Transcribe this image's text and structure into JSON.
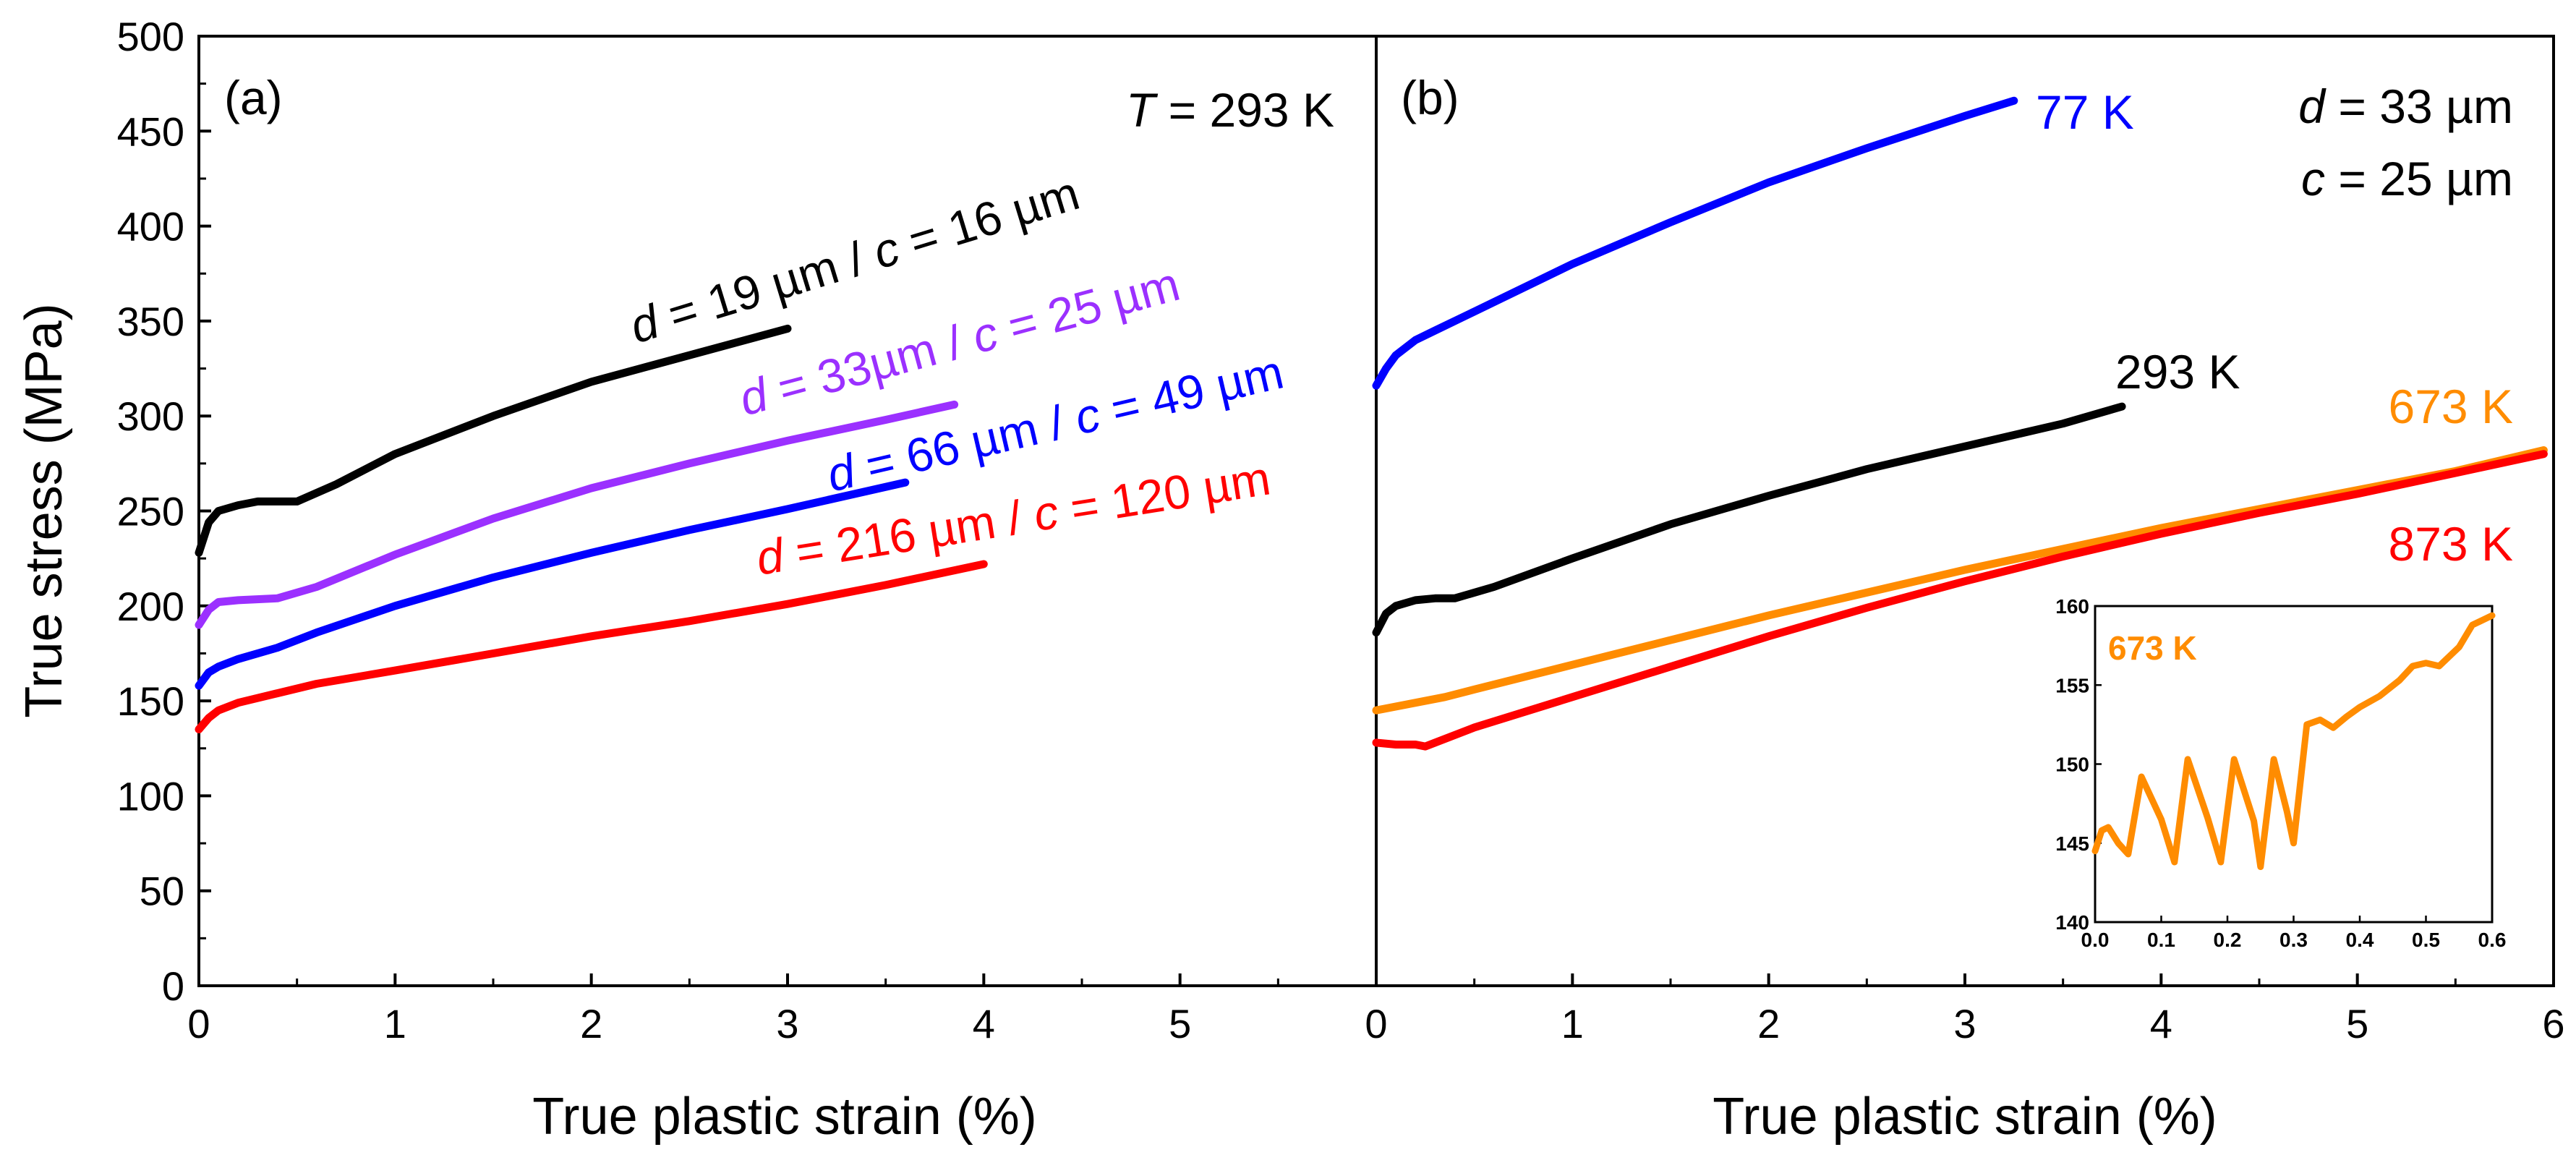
{
  "chart_data": [
    {
      "type": "line",
      "panel": "(a)",
      "condition_label": "T = 293 K",
      "condition_var": "T",
      "condition_rest": " = 293 K",
      "xlabel": "True plastic strain (%)",
      "ylabel": "True stress (MPa)",
      "xlim": [
        0,
        6
      ],
      "ylim": [
        0,
        500
      ],
      "xticks": [
        0,
        1,
        2,
        3,
        4,
        5
      ],
      "yticks": [
        0,
        50,
        100,
        150,
        200,
        250,
        300,
        350,
        400,
        450,
        500
      ],
      "series": [
        {
          "name": "d = 19 µm / c = 16 µm",
          "label_d": "d",
          "label_mid": " = 19 µm / ",
          "label_c": "c",
          "label_end": " = 16 µm",
          "color": "#000000",
          "x": [
            0,
            0.05,
            0.1,
            0.2,
            0.3,
            0.5,
            0.7,
            1.0,
            1.5,
            2.0,
            2.5,
            3.0
          ],
          "y": [
            228,
            244,
            250,
            253,
            255,
            255,
            264,
            280,
            300,
            318,
            332,
            346
          ]
        },
        {
          "name": "d = 33µm / c = 25 µm",
          "label_d": "d",
          "label_mid": " = 33µm / ",
          "label_c": "c",
          "label_end": " = 25 µm",
          "color": "#9b30ff",
          "x": [
            0,
            0.05,
            0.1,
            0.2,
            0.4,
            0.6,
            1.0,
            1.5,
            2.0,
            2.5,
            3.0,
            3.5,
            3.85
          ],
          "y": [
            190,
            198,
            202,
            203,
            204,
            210,
            227,
            246,
            262,
            275,
            287,
            298,
            306
          ]
        },
        {
          "name": "d = 66 µm / c = 49 µm",
          "label_d": "d",
          "label_mid": " = 66 µm / ",
          "label_c": "c",
          "label_end": " = 49 µm",
          "color": "#0000ff",
          "x": [
            0,
            0.05,
            0.1,
            0.2,
            0.4,
            0.6,
            1.0,
            1.5,
            2.0,
            2.5,
            3.0,
            3.6
          ],
          "y": [
            158,
            165,
            168,
            172,
            178,
            186,
            200,
            215,
            228,
            240,
            251,
            265
          ]
        },
        {
          "name": "d = 216 µm / c = 120 µm",
          "label_d": "d",
          "label_mid": " = 216 µm / ",
          "label_c": "c",
          "label_end": " = 120 µm",
          "color": "#ff0000",
          "x": [
            0,
            0.05,
            0.1,
            0.2,
            0.4,
            0.6,
            1.0,
            1.5,
            2.0,
            2.5,
            3.0,
            3.5,
            4.0
          ],
          "y": [
            135,
            141,
            145,
            149,
            154,
            159,
            166,
            175,
            184,
            192,
            201,
            211,
            222
          ]
        }
      ]
    },
    {
      "type": "line",
      "panel": "(b)",
      "condition_d_var": "d",
      "condition_d_rest": " = 33 µm",
      "condition_c_var": "c",
      "condition_c_rest": " = 25 µm",
      "xlabel": "True plastic strain (%)",
      "xlim": [
        0,
        6
      ],
      "ylim": [
        0,
        500
      ],
      "xticks": [
        0,
        1,
        2,
        3,
        4,
        5,
        6
      ],
      "series": [
        {
          "name": "77 K",
          "color": "#0000ff",
          "x": [
            0,
            0.05,
            0.1,
            0.2,
            0.3,
            0.5,
            1.0,
            1.5,
            2.0,
            2.5,
            3.0,
            3.25
          ],
          "y": [
            316,
            325,
            332,
            340,
            345,
            355,
            380,
            402,
            423,
            441,
            458,
            466
          ]
        },
        {
          "name": "293 K",
          "color": "#000000",
          "x": [
            0,
            0.05,
            0.1,
            0.2,
            0.3,
            0.4,
            0.6,
            1.0,
            1.5,
            2.0,
            2.5,
            3.0,
            3.5,
            3.8
          ],
          "y": [
            186,
            196,
            200,
            203,
            204,
            204,
            210,
            225,
            243,
            258,
            272,
            284,
            296,
            305
          ]
        },
        {
          "name": "673 K",
          "color": "#ff8c00",
          "x": [
            0,
            0.35,
            0.5,
            1.0,
            1.5,
            2.0,
            2.5,
            3.0,
            3.5,
            4.0,
            4.5,
            5.0,
            5.5,
            5.95
          ],
          "y": [
            145,
            152,
            156,
            169,
            182,
            195,
            207,
            219,
            230,
            241,
            251,
            261,
            271,
            282
          ]
        },
        {
          "name": "873 K",
          "color": "#ff0000",
          "x": [
            0,
            0.1,
            0.2,
            0.25,
            0.35,
            0.5,
            1.0,
            1.5,
            2.0,
            2.5,
            3.0,
            3.5,
            4.0,
            4.5,
            5.0,
            5.5,
            5.95
          ],
          "y": [
            128,
            127,
            127,
            126,
            130,
            136,
            152,
            168,
            184,
            199,
            213,
            226,
            238,
            249,
            259,
            270,
            280
          ]
        }
      ]
    },
    {
      "type": "line",
      "panel": "inset",
      "annotation": "673 K",
      "xlim": [
        0,
        0.6
      ],
      "ylim": [
        140,
        160
      ],
      "xticks": [
        "0.0",
        "0.1",
        "0.2",
        "0.3",
        "0.4",
        "0.5",
        "0.6"
      ],
      "yticks": [
        "140",
        "145",
        "150",
        "155",
        "160"
      ],
      "series": [
        {
          "name": "673 K",
          "color": "#ff8c00",
          "x": [
            0.0,
            0.01,
            0.02,
            0.035,
            0.05,
            0.07,
            0.1,
            0.12,
            0.14,
            0.17,
            0.19,
            0.21,
            0.24,
            0.25,
            0.27,
            0.29,
            0.3,
            0.32,
            0.34,
            0.36,
            0.38,
            0.4,
            0.43,
            0.46,
            0.48,
            0.5,
            0.52,
            0.55,
            0.57,
            0.6
          ],
          "y": [
            144.5,
            145.8,
            146.0,
            145.0,
            144.3,
            149.2,
            146.5,
            143.8,
            150.3,
            146.6,
            143.8,
            150.3,
            146.4,
            143.5,
            150.3,
            147.0,
            145.0,
            152.5,
            152.8,
            152.3,
            153.0,
            153.6,
            154.3,
            155.3,
            156.2,
            156.4,
            156.2,
            157.4,
            158.8,
            159.4
          ]
        }
      ]
    }
  ]
}
